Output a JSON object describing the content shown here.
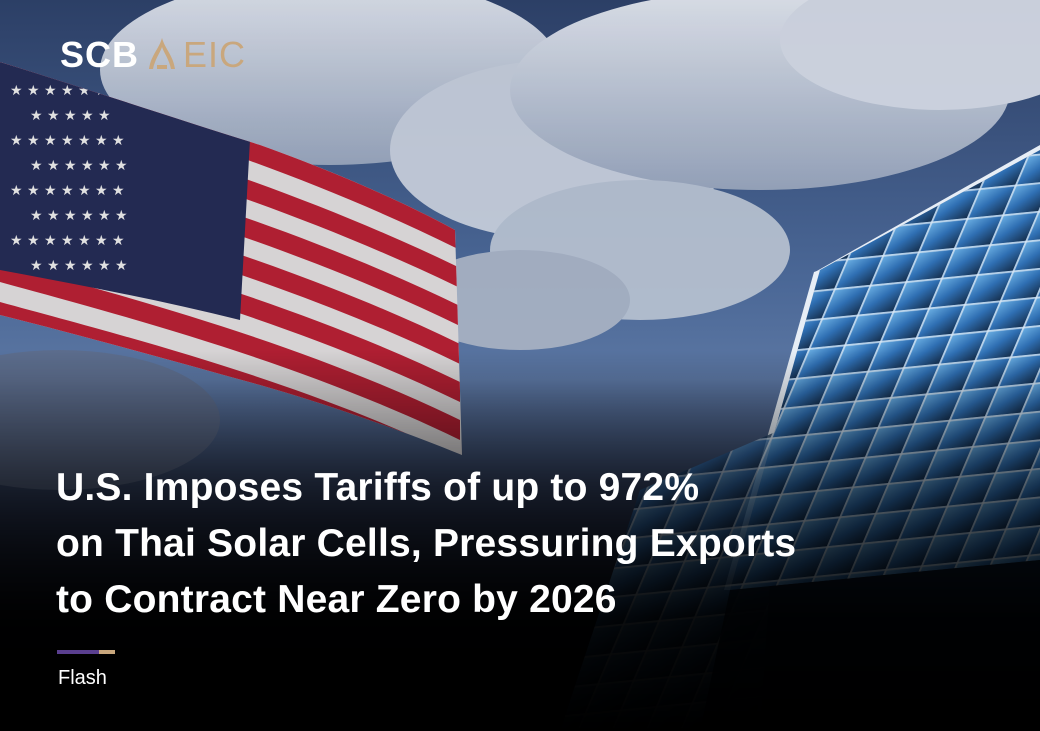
{
  "brand": {
    "scb": "SCB",
    "eic": "EIC",
    "mark_icon": "temple-roof-icon"
  },
  "headline": {
    "lines": [
      "U.S. Imposes Tariffs of up to 972%",
      "on Thai Solar Cells, Pressuring Exports",
      "to Contract Near Zero by 2026"
    ]
  },
  "tag": {
    "label": "Flash"
  },
  "colors": {
    "brand_gold": "#c9a77d",
    "brand_purple": "#5a3f8f",
    "flag_red": "#c8243a",
    "flag_blue": "#28305e",
    "panel_blue": "#3f8fd0"
  }
}
